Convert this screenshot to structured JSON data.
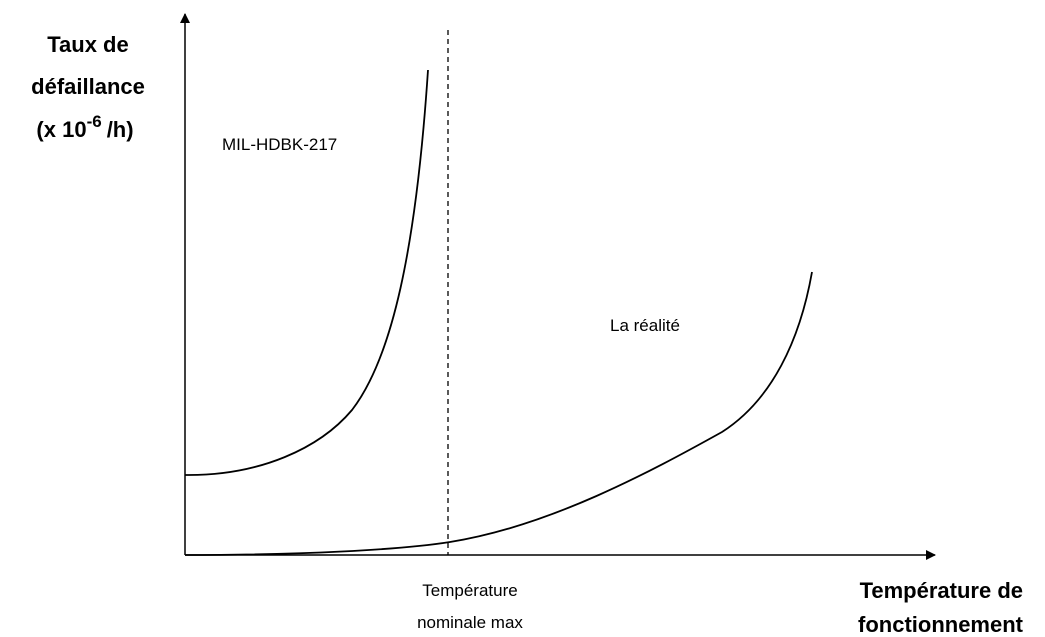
{
  "y_axis_label": {
    "lines": [
      "Taux de",
      "défaillance"
    ],
    "unit": {
      "prefix": "(x 10",
      "exponent": "-6",
      "suffix": "/h)"
    }
  },
  "x_axis_label": {
    "lines": [
      "Température de",
      "fonctionnement"
    ]
  },
  "marker_label": {
    "lines": [
      "Température",
      "nominale max"
    ]
  },
  "curves": [
    {
      "label": "MIL-HDBK-217"
    },
    {
      "label": "La réalité"
    }
  ]
}
